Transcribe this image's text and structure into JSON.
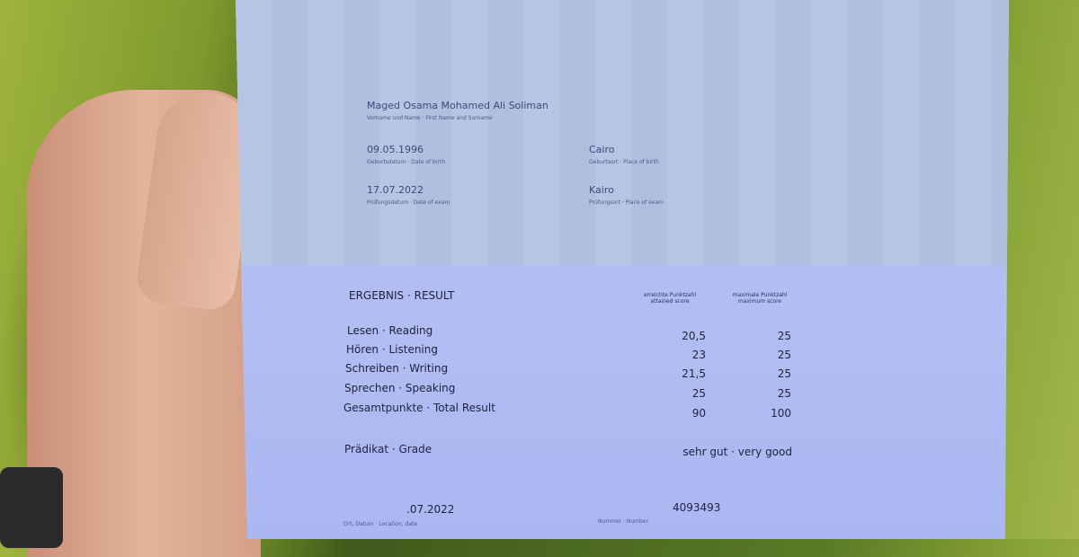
{
  "personal": {
    "name": "Maged Osama Mohamed Ali Soliman",
    "name_label": "Vorname und Name · First Name and Surname",
    "birth_date": "09.05.1996",
    "birth_date_label": "Geburtsdatum · Date of birth",
    "birth_place": "Cairo",
    "birth_place_label": "Geburtsort · Place of birth",
    "exam_date": "17.07.2022",
    "exam_date_label": "Prüfungsdatum · Date of exam",
    "exam_place": "Kairo",
    "exam_place_label": "Prüfungsort · Place of exam"
  },
  "result": {
    "heading": "ERGEBNIS · RESULT",
    "col_attained": "erreichte Punktzahl attained score",
    "col_max": "maximale Punktzahl maximum score",
    "rows": [
      {
        "label": "Lesen · Reading",
        "score": "20,5",
        "max": "25"
      },
      {
        "label": "Hören · Listening",
        "score": "23",
        "max": "25"
      },
      {
        "label": "Schreiben · Writing",
        "score": "21,5",
        "max": "25"
      },
      {
        "label": "Sprechen · Speaking",
        "score": "25",
        "max": "25"
      },
      {
        "label": "Gesamtpunkte · Total Result",
        "score": "90",
        "max": "100"
      }
    ],
    "grade_label": "Prädikat · Grade",
    "grade": "sehr gut · very good"
  },
  "footer": {
    "date": ".07.2022",
    "date_label": "Ort, Datum · Location, date",
    "number": "4093493",
    "number_label": "Nummer · Number"
  }
}
